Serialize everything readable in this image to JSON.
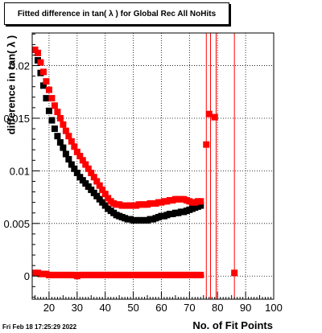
{
  "chart_data": {
    "type": "scatter",
    "title": "Fitted difference in tan( λ ) for Global Rec All NoHits",
    "xlabel": "No. of Fit Points",
    "ylabel": "difference in tan( λ )",
    "xlim": [
      14,
      100
    ],
    "ylim": [
      -0.0022,
      0.0231
    ],
    "xticks": [
      20,
      30,
      40,
      50,
      60,
      70,
      80,
      90,
      100
    ],
    "yticks": [
      0,
      0.005,
      0.01,
      0.015,
      0.02
    ],
    "ytick_labels": [
      "0",
      "0.005",
      "0.01",
      "0.015",
      "0.02"
    ],
    "grid": true,
    "series": [
      {
        "color": "#000000",
        "x": [
          15,
          16,
          17,
          18,
          19,
          20,
          21,
          22,
          23,
          24,
          25,
          26,
          27,
          28,
          29,
          30,
          31,
          32,
          33,
          34,
          35,
          36,
          37,
          38,
          39,
          40,
          41,
          42,
          43,
          44,
          45,
          46,
          47,
          48,
          49,
          50,
          51,
          52,
          53,
          54,
          55,
          56,
          57,
          58,
          59,
          60,
          61,
          62,
          63,
          64,
          65,
          66,
          67,
          68,
          69,
          70,
          71,
          72,
          73,
          74
        ],
        "y": [
          0.0215,
          0.0205,
          0.0193,
          0.0181,
          0.0169,
          0.0157,
          0.0148,
          0.014,
          0.0133,
          0.0127,
          0.0122,
          0.0116,
          0.0111,
          0.0106,
          0.0102,
          0.0098,
          0.0094,
          0.0091,
          0.0088,
          0.0085,
          0.0082,
          0.0079,
          0.0076,
          0.0073,
          0.007,
          0.0067,
          0.0064,
          0.0062,
          0.006,
          0.0058,
          0.0057,
          0.0056,
          0.0055,
          0.0054,
          0.0054,
          0.0053,
          0.0053,
          0.0053,
          0.0053,
          0.0053,
          0.0053,
          0.0054,
          0.0054,
          0.0055,
          0.0056,
          0.0057,
          0.0057,
          0.0058,
          0.0059,
          0.0059,
          0.006,
          0.006,
          0.0061,
          0.0061,
          0.0062,
          0.0063,
          0.0064,
          0.0065,
          0.0066,
          0.0067
        ]
      },
      {
        "color": "#ff0000",
        "x": [
          15,
          16,
          17,
          18,
          19,
          20,
          21,
          22,
          23,
          24,
          25,
          26,
          27,
          28,
          29,
          30,
          31,
          32,
          33,
          34,
          35,
          36,
          37,
          38,
          39,
          40,
          41,
          42,
          43,
          44,
          45,
          46,
          47,
          48,
          49,
          50,
          51,
          52,
          53,
          54,
          55,
          56,
          57,
          58,
          59,
          60,
          61,
          62,
          63,
          64,
          65,
          66,
          67,
          68,
          69,
          70,
          71,
          72,
          73,
          74,
          76,
          77,
          79
        ],
        "y": [
          0.0215,
          0.0212,
          0.0203,
          0.0194,
          0.0185,
          0.0177,
          0.0169,
          0.0162,
          0.0156,
          0.015,
          0.0144,
          0.0138,
          0.0133,
          0.0128,
          0.0123,
          0.0118,
          0.0114,
          0.011,
          0.0106,
          0.0102,
          0.0098,
          0.0094,
          0.009,
          0.0086,
          0.0082,
          0.0078,
          0.0074,
          0.0071,
          0.0069,
          0.0068,
          0.0068,
          0.0067,
          0.0067,
          0.0067,
          0.0067,
          0.0067,
          0.0067,
          0.0068,
          0.0068,
          0.0068,
          0.0068,
          0.0069,
          0.0069,
          0.0069,
          0.007,
          0.007,
          0.0071,
          0.0071,
          0.0072,
          0.0072,
          0.0073,
          0.0073,
          0.0073,
          0.0073,
          0.0072,
          0.0071,
          0.007,
          0.007,
          0.0071,
          0.0071,
          0.0125,
          0.0154,
          0.0151
        ]
      },
      {
        "color": "#ff0000",
        "x": [
          15,
          16,
          17,
          18,
          19,
          20,
          21,
          22,
          23,
          24,
          25,
          26,
          27,
          28,
          29,
          30,
          31,
          32,
          33,
          34,
          35,
          36,
          37,
          38,
          39,
          40,
          41,
          42,
          43,
          44,
          45,
          46,
          47,
          48,
          49,
          50,
          51,
          52,
          53,
          54,
          55,
          56,
          57,
          58,
          59,
          60,
          61,
          62,
          63,
          64,
          65,
          66,
          67,
          68,
          69,
          70,
          71,
          72,
          73,
          74,
          86
        ],
        "y": [
          0.0003,
          0.0003,
          0.0002,
          0.0002,
          0.0002,
          0.0001,
          0.0001,
          0.0001,
          0.0001,
          0.0001,
          0.0001,
          0.0001,
          0.0001,
          0.0001,
          0.0001,
          0.0,
          0.0001,
          0.0001,
          0.0001,
          0.0001,
          0.0001,
          0.0001,
          0.0001,
          0.0001,
          0.0001,
          0.0001,
          0.0001,
          0.0001,
          0.0001,
          0.0001,
          0.0001,
          0.0001,
          0.0001,
          0.0001,
          0.0001,
          0.0001,
          0.0001,
          0.0001,
          0.0001,
          0.0001,
          0.0001,
          0.0001,
          0.0001,
          0.0001,
          0.0001,
          0.0001,
          0.0001,
          0.0001,
          0.0001,
          0.0001,
          0.0001,
          0.0001,
          0.0001,
          0.0001,
          0.0001,
          0.0001,
          0.0001,
          0.0001,
          0.0001,
          0.0001,
          0.0003
        ]
      }
    ],
    "vertical_lines": {
      "color": "#ff0000",
      "x": [
        76,
        77.5,
        79.5,
        86
      ]
    }
  },
  "footer": {
    "timestamp": "Fri Feb 18 17:25:29 2022"
  }
}
